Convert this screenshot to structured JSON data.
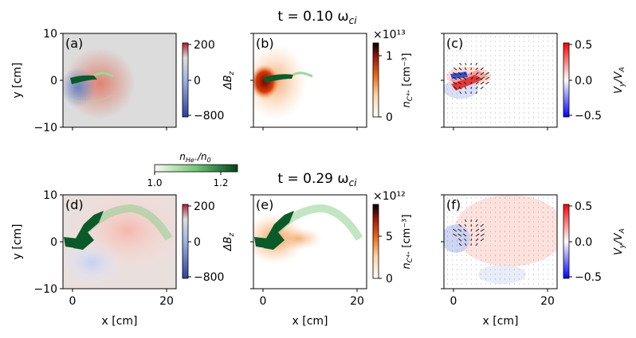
{
  "colors": {
    "bg_gray": "#dcdcdc",
    "plasma_green": "#0b5a2a",
    "green_light": "#a8dca0",
    "red": "#e0664f",
    "blue": "#5a7dc6",
    "dark_red": "#8b0000",
    "orange": "#f4a261"
  },
  "chart_data": [
    {
      "type": "heatmap",
      "row_title_main": "t = 0.10 ω",
      "row_title_sub": "ci",
      "panels": [
        {
          "label": "(a)",
          "quantity": "ΔB",
          "quantity_sub": "z",
          "colorbar_ticks": [
            "200",
            "0",
            "−800"
          ],
          "colorbar_range": [
            -800,
            200
          ]
        },
        {
          "label": "(b)",
          "quantity": "n",
          "quantity_sub": "C⁴⁺",
          "quantity_unit": "[cm⁻³]",
          "colorbar_ticks": [
            "1",
            "0"
          ],
          "colorbar_exponent": "×10¹³",
          "colorbar_range": [
            0,
            1.2
          ]
        },
        {
          "label": "(c)",
          "quantity": "V",
          "quantity_sub": "y",
          "quantity_tail": "/V",
          "quantity_tail_sub": "A",
          "colorbar_ticks": [
            "0.5",
            "0.0",
            "−0.5"
          ],
          "colorbar_range": [
            -0.5,
            0.5
          ]
        }
      ],
      "ylabel": "y [cm]",
      "yticks": [
        "10",
        "0",
        "−10"
      ],
      "ylim": [
        -10,
        10
      ]
    },
    {
      "type": "heatmap",
      "row_title_main": "t = 0.29 ω",
      "row_title_sub": "ci",
      "panels": [
        {
          "label": "(d)",
          "quantity": "ΔB",
          "quantity_sub": "z",
          "colorbar_ticks": [
            "200",
            "0",
            "−800"
          ],
          "colorbar_range": [
            -800,
            200
          ]
        },
        {
          "label": "(e)",
          "quantity": "n",
          "quantity_sub": "C⁴⁺",
          "quantity_unit": "[cm⁻³]",
          "colorbar_ticks": [
            "5",
            "0"
          ],
          "colorbar_exponent": "×10¹²",
          "colorbar_range": [
            0,
            8
          ]
        },
        {
          "label": "(f)",
          "quantity": "V",
          "quantity_sub": "y",
          "quantity_tail": "/V",
          "quantity_tail_sub": "A",
          "colorbar_ticks": [
            "0.5",
            "0.0",
            "−0.5"
          ],
          "colorbar_range": [
            -0.5,
            0.5
          ]
        }
      ],
      "xlabel": "x [cm]",
      "xticks": [
        "0",
        "20"
      ],
      "xlim": [
        -2,
        22
      ],
      "ylabel": "y [cm]",
      "yticks": [
        "10",
        "0",
        "−10"
      ],
      "ylim": [
        -10,
        10
      ]
    }
  ],
  "he_colorbar": {
    "label_main": "n",
    "label_sub": "He⁺",
    "label_tail": "/n",
    "label_tail_sub": "0",
    "ticks": [
      "1.0",
      "1.2"
    ],
    "range": [
      1.0,
      1.25
    ]
  }
}
